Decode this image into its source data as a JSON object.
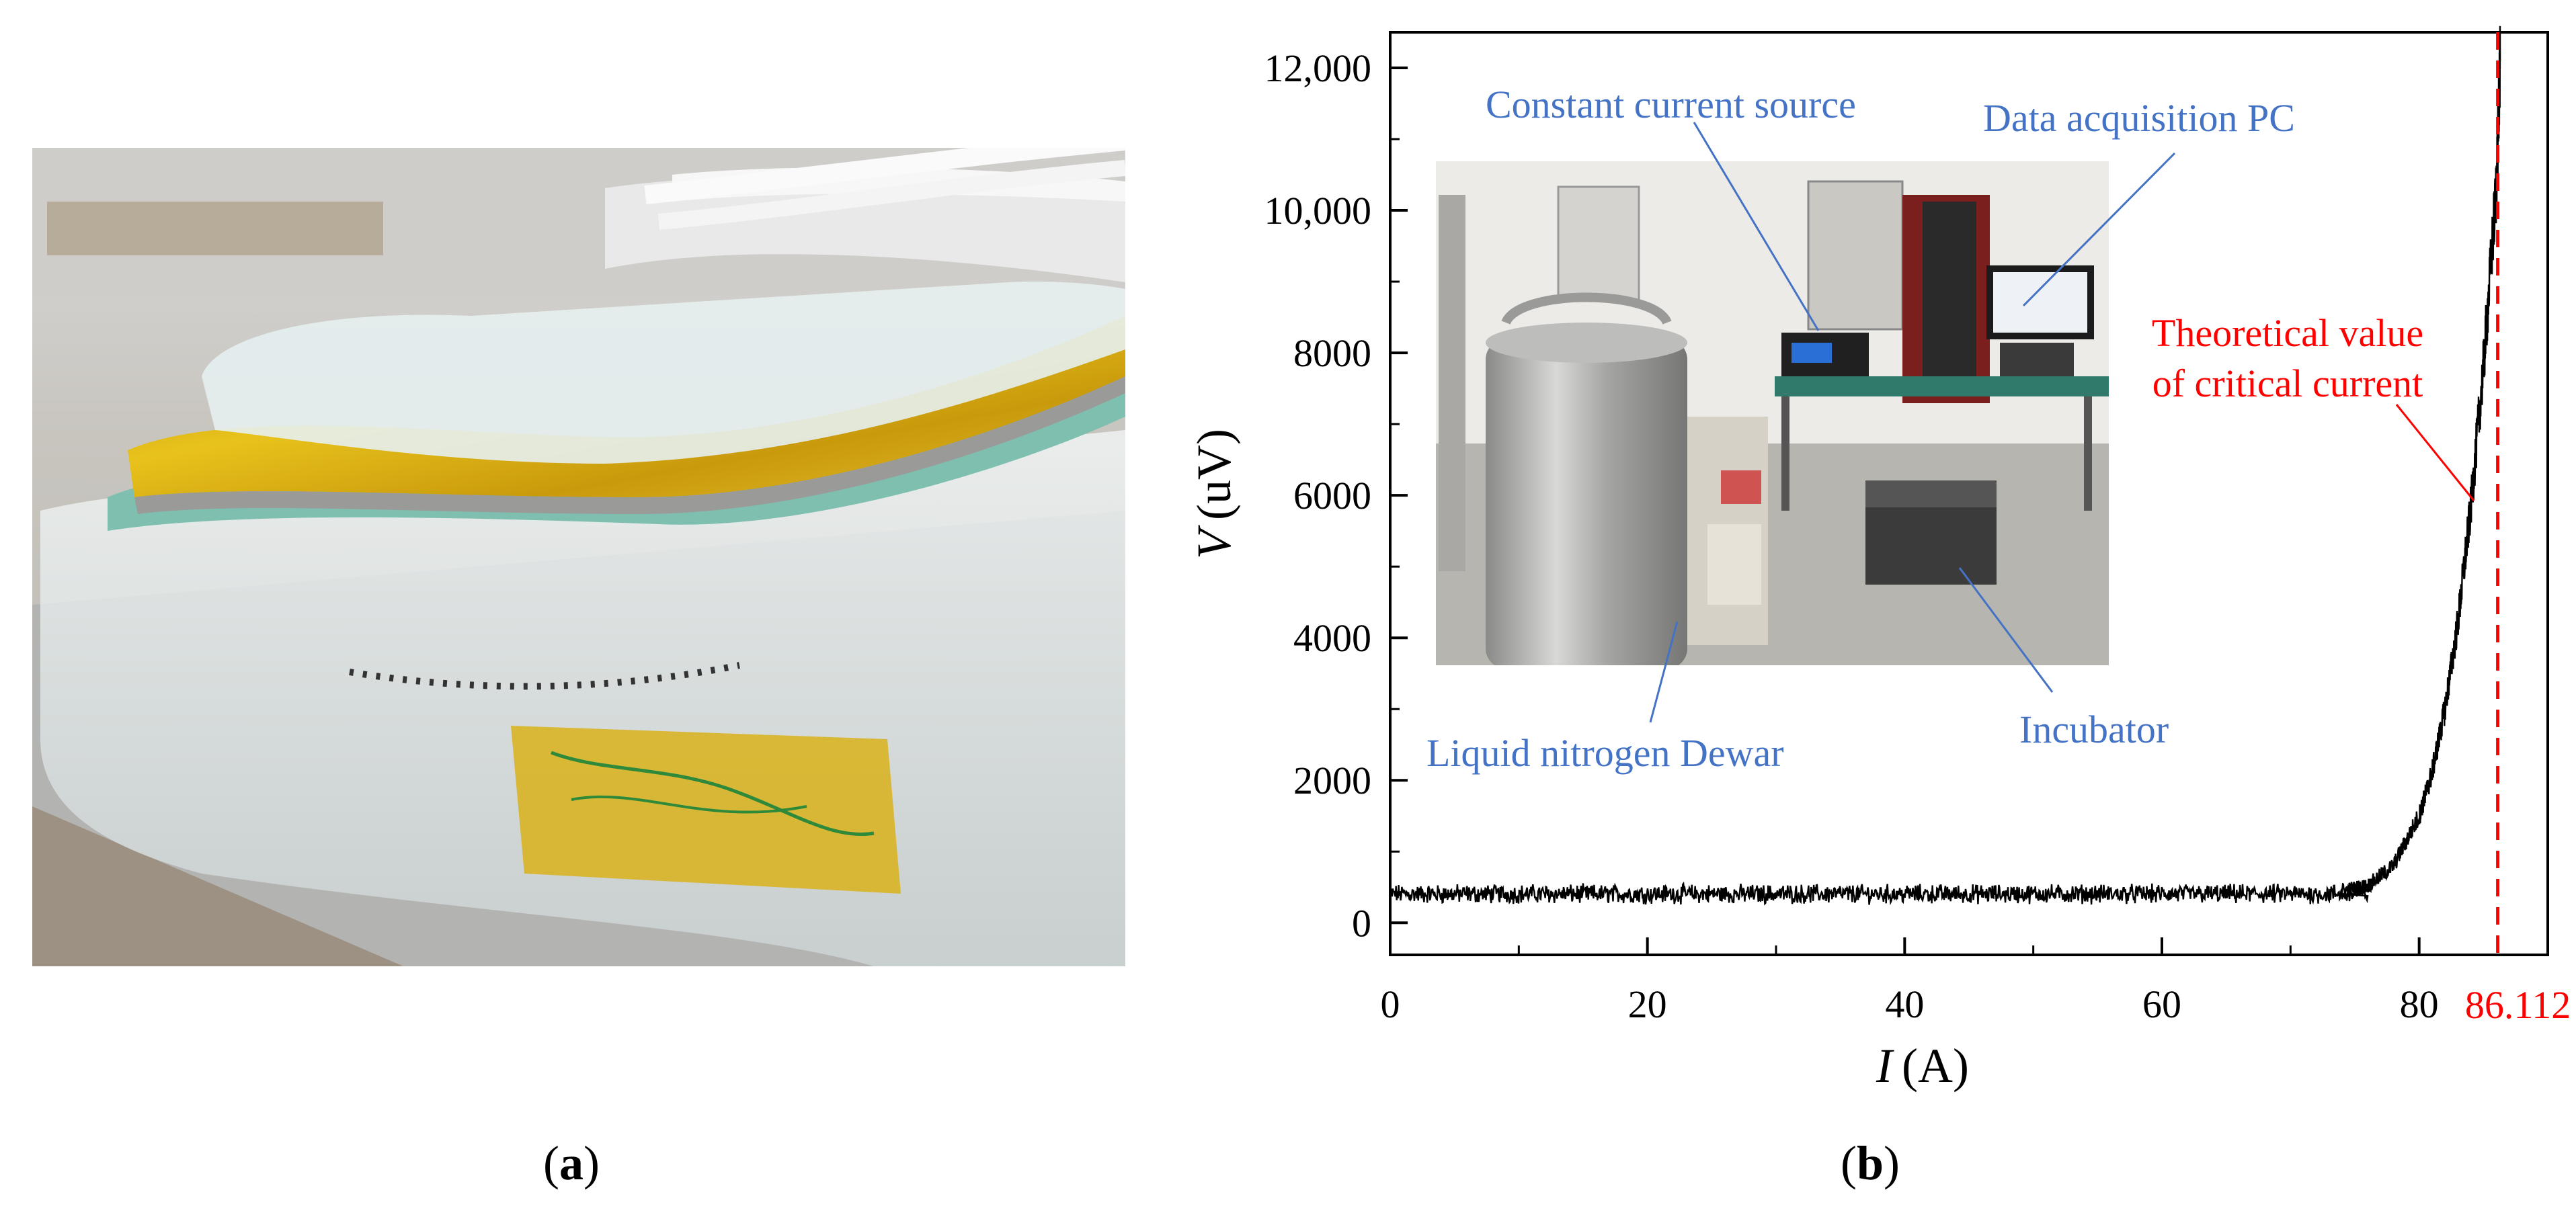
{
  "panel_labels": {
    "a": {
      "open": "(",
      "letter": "a",
      "close": ")"
    },
    "b": {
      "open": "(",
      "letter": "b",
      "close": ")"
    }
  },
  "photo_a": {
    "content": "photo of a racetrack-shaped coil wound with gold-colored tape on a transparent acrylic base"
  },
  "chart_data": {
    "type": "line",
    "title": "",
    "xlabel": {
      "var": "I",
      "unit": "(A)"
    },
    "ylabel": {
      "var": "V",
      "unit": "(uV)"
    },
    "xlim": [
      0,
      90
    ],
    "ylim": [
      -450,
      12500
    ],
    "x_ticks": [
      0,
      20,
      40,
      60,
      80
    ],
    "x_tick_labels": [
      "0",
      "20",
      "40",
      "60",
      "80"
    ],
    "y_ticks": [
      0,
      2000,
      4000,
      6000,
      8000,
      10000,
      12000
    ],
    "y_tick_labels": [
      "0",
      "2000",
      "4000",
      "6000",
      "8000",
      "10,000",
      "12,000"
    ],
    "grid": false,
    "series": [
      {
        "color": "#000000",
        "baseline_noise": {
          "x_range": [
            0,
            76
          ],
          "mean": 380,
          "band": [
            250,
            560
          ]
        },
        "rise_points": [
          [
            74,
            450
          ],
          [
            76,
            520
          ],
          [
            78,
            800
          ],
          [
            80,
            1500
          ],
          [
            81,
            2100
          ],
          [
            82,
            3000
          ],
          [
            83,
            4200
          ],
          [
            84,
            5800
          ],
          [
            85,
            7800
          ],
          [
            86,
            10300
          ],
          [
            86.3,
            12100
          ]
        ]
      }
    ],
    "critical_line": {
      "x": 86.112,
      "label": "86.112",
      "color": "#ff0000"
    },
    "annotations": {
      "theoretical_line1": "Theoretical value",
      "theoretical_line2": "of critical current",
      "constant_current_source": "Constant current source",
      "data_acquisition_pc": "Data acquisition PC",
      "liquid_nitrogen_dewar": "Liquid nitrogen Dewar",
      "incubator": "Incubator"
    },
    "annotation_color_blue": "#4472c4",
    "annotation_color_red": "#ff0000",
    "inset_photo": {
      "content": "photo of the test setup: liquid nitrogen Dewar, constant current source, data acquisition PC and incubator"
    }
  }
}
